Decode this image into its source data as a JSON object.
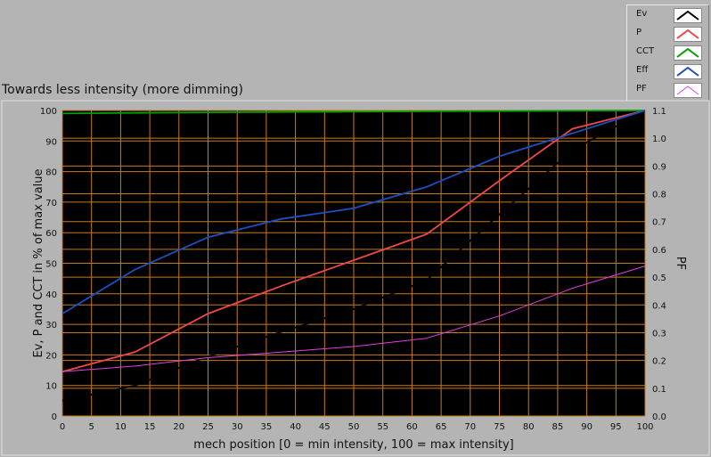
{
  "chart_data": {
    "type": "line",
    "title": "Towards less intensity (more dimming)",
    "xlabel": "mech position [0 = min intensity, 100 = max intensity]",
    "ylabel": "Ev, P and CCT in % of max value",
    "y2label": "PF",
    "xlim": [
      0,
      100
    ],
    "ylim": [
      0,
      100
    ],
    "y2lim": [
      0.0,
      1.1
    ],
    "x_ticks": [
      0,
      5,
      10,
      15,
      20,
      25,
      30,
      35,
      40,
      45,
      50,
      55,
      60,
      65,
      70,
      75,
      80,
      85,
      90,
      95,
      100
    ],
    "y_ticks": [
      0,
      10,
      20,
      30,
      40,
      50,
      60,
      70,
      80,
      90,
      100
    ],
    "y2_ticks": [
      "0.0",
      "0.1",
      "0.2",
      "0.3",
      "0.4",
      "0.5",
      "0.6",
      "0.7",
      "0.8",
      "0.9",
      "1.0",
      "1.1"
    ],
    "grid": true,
    "legend_position": "top-right",
    "series": [
      {
        "name": "Ev",
        "color": "#000000",
        "axis": "left",
        "x": [
          0,
          12.5,
          25,
          37.5,
          50,
          62.5,
          75,
          87.5,
          100
        ],
        "values": [
          5,
          10,
          19.5,
          27.5,
          35,
          44.5,
          66,
          87,
          100
        ]
      },
      {
        "name": "P",
        "color": "#f04848",
        "axis": "left",
        "x": [
          0,
          12.5,
          25,
          37.5,
          50,
          62.5,
          75,
          87.5,
          100
        ],
        "values": [
          14.5,
          21,
          33.5,
          42.5,
          51,
          59.5,
          77,
          94,
          100
        ]
      },
      {
        "name": "CCT",
        "color": "#00a000",
        "axis": "left",
        "x": [
          0,
          12.5,
          25,
          37.5,
          50,
          62.5,
          75,
          87.5,
          100
        ],
        "values": [
          99,
          99.2,
          99.4,
          99.5,
          99.6,
          99.7,
          99.8,
          99.9,
          100
        ]
      },
      {
        "name": "Eff",
        "color": "#1c4fc4",
        "axis": "left",
        "x": [
          0,
          12.5,
          25,
          37.5,
          50,
          62.5,
          75,
          87.5,
          100
        ],
        "values": [
          33.5,
          48,
          58.5,
          64.5,
          68,
          75,
          85,
          92.5,
          100
        ]
      },
      {
        "name": "PF",
        "color": "#e040e0",
        "axis": "right",
        "x": [
          0,
          12.5,
          25,
          37.5,
          50,
          62.5,
          75,
          87.5,
          100
        ],
        "values": [
          0.16,
          0.18,
          0.21,
          0.23,
          0.25,
          0.28,
          0.36,
          0.46,
          0.54
        ]
      }
    ]
  }
}
